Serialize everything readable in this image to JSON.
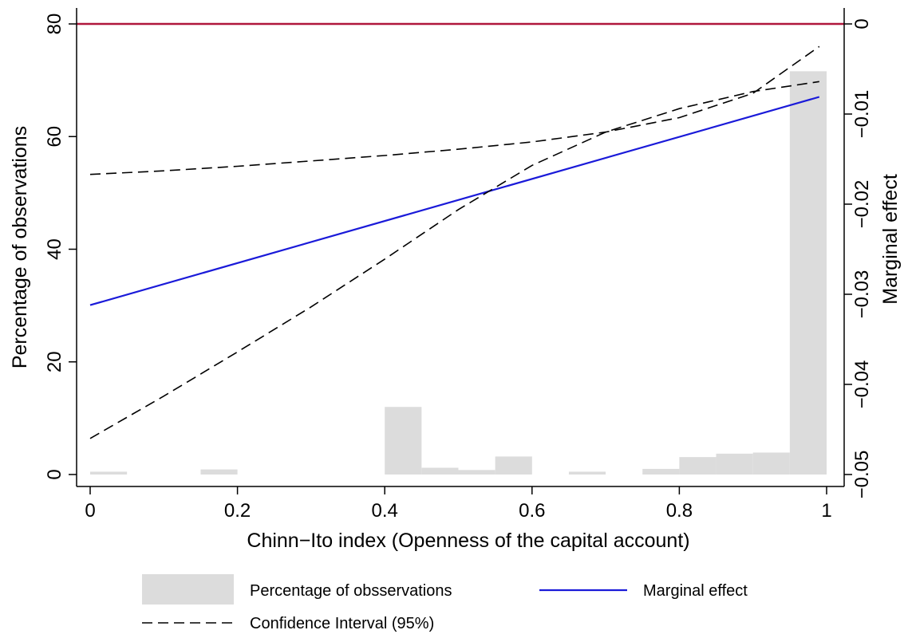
{
  "chart_data": {
    "type": "bar",
    "title": "",
    "xlabel": "Chinn−Ito index (Openness of the capital account)",
    "ylabel": "Percentage of observations",
    "y2label": "Marginal effect",
    "xlim": [
      0,
      1
    ],
    "ylim": [
      0,
      80
    ],
    "y2lim": [
      -0.05,
      0
    ],
    "x_ticks": [
      "0",
      "0.2",
      "0.4",
      "0.6",
      "0.8",
      "1"
    ],
    "y_ticks": [
      "0",
      "20",
      "40",
      "60",
      "80"
    ],
    "y2_ticks": [
      "0",
      "−0.01",
      "−0.02",
      "−0.03",
      "−0.04",
      "−0.05"
    ],
    "grid": false,
    "legend_position": "bottom",
    "colors": {
      "bars": "#dcdcdc",
      "marginal": "#1a1ad9",
      "ci": "#000000",
      "reference": "#b0163c"
    },
    "histogram": {
      "name": "Percentage of obsservations",
      "bin_width": 0.05,
      "bins": [
        {
          "x0": 0.0,
          "value": 0.5
        },
        {
          "x0": 0.15,
          "value": 0.9
        },
        {
          "x0": 0.4,
          "value": 12.0
        },
        {
          "x0": 0.45,
          "value": 1.2
        },
        {
          "x0": 0.5,
          "value": 0.8
        },
        {
          "x0": 0.55,
          "value": 3.2
        },
        {
          "x0": 0.65,
          "value": 0.5
        },
        {
          "x0": 0.75,
          "value": 1.0
        },
        {
          "x0": 0.8,
          "value": 3.1
        },
        {
          "x0": 0.85,
          "value": 3.7
        },
        {
          "x0": 0.9,
          "value": 3.9
        },
        {
          "x0": 0.95,
          "value": 71.6
        }
      ]
    },
    "reference_line": {
      "axis": "y2",
      "value": 0
    },
    "series": [
      {
        "name": "Marginal effect",
        "style": "solid",
        "x": [
          0,
          0.99
        ],
        "y": [
          -0.0312,
          -0.0081
        ]
      },
      {
        "name": "Confidence Interval (95%)",
        "style": "dashed",
        "x": [
          0,
          0.1,
          0.2,
          0.3,
          0.4,
          0.5,
          0.6,
          0.7,
          0.8,
          0.9,
          0.99
        ],
        "y": [
          -0.0167,
          -0.0163,
          -0.0158,
          -0.0152,
          -0.0146,
          -0.0139,
          -0.0131,
          -0.012,
          -0.0104,
          -0.0077,
          -0.0025
        ]
      },
      {
        "name": "Confidence Interval (95%)",
        "style": "dashed",
        "x": [
          0,
          0.1,
          0.2,
          0.3,
          0.4,
          0.5,
          0.6,
          0.7,
          0.8,
          0.9,
          0.99
        ],
        "y": [
          -0.046,
          -0.0413,
          -0.0364,
          -0.0314,
          -0.0261,
          -0.0206,
          -0.0157,
          -0.012,
          -0.0094,
          -0.0075,
          -0.0064
        ]
      }
    ],
    "legend": {
      "histogram": "Percentage of obsservations",
      "marginal": "Marginal effect",
      "ci": "Confidence Interval (95%)"
    }
  }
}
